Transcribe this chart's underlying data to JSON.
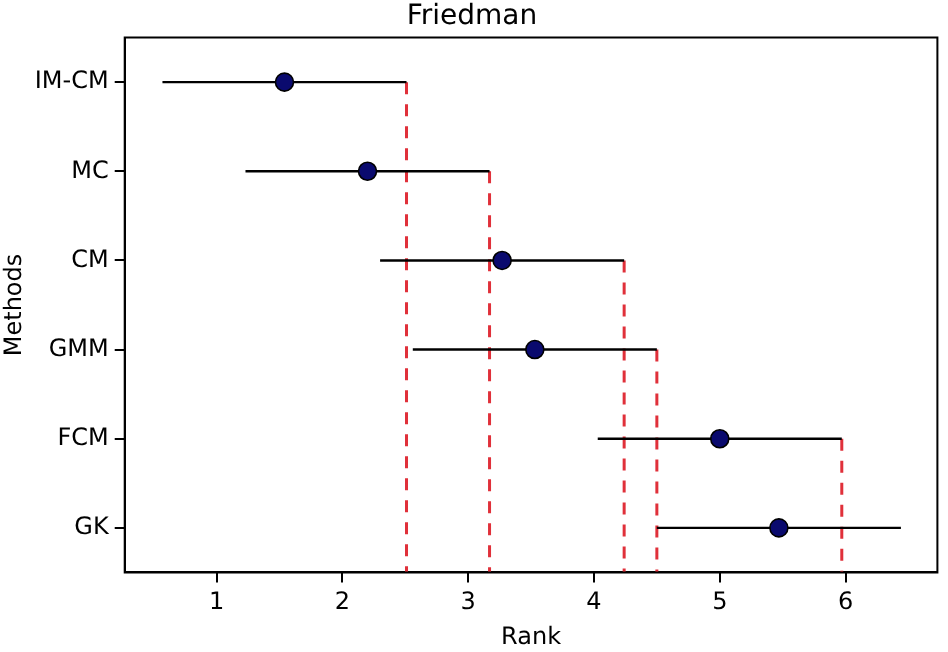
{
  "chart_data": {
    "type": "scatter",
    "title": "Friedman",
    "xlabel": "Rank",
    "ylabel": "Methods",
    "categories": [
      "IM-CM",
      "MC",
      "CM",
      "GMM",
      "FCM",
      "GK"
    ],
    "orientation": "horizontal",
    "series": [
      {
        "color": "#0a0a6e",
        "values": [
          1.54,
          2.2,
          3.27,
          3.53,
          5.0,
          5.47
        ],
        "errors": [
          0.97,
          0.97,
          0.97,
          0.97,
          0.97,
          0.97
        ]
      }
    ],
    "xlim": [
      0.27,
      6.73
    ],
    "xticks": [
      1,
      2,
      3,
      4,
      5,
      6
    ],
    "ref_lines": [
      {
        "axis": "x",
        "value": 2.51,
        "color": "#e0303a",
        "line_style": "dashed"
      },
      {
        "axis": "x",
        "value": 3.17,
        "color": "#e0303a",
        "line_style": "dashed"
      },
      {
        "axis": "x",
        "value": 4.24,
        "color": "#e0303a",
        "line_style": "dashed"
      },
      {
        "axis": "x",
        "value": 4.5,
        "color": "#e0303a",
        "line_style": "dashed"
      },
      {
        "axis": "x",
        "value": 5.97,
        "color": "#e0303a",
        "line_style": "dashed"
      }
    ],
    "marker": "circle",
    "grid": false,
    "legend": false
  }
}
